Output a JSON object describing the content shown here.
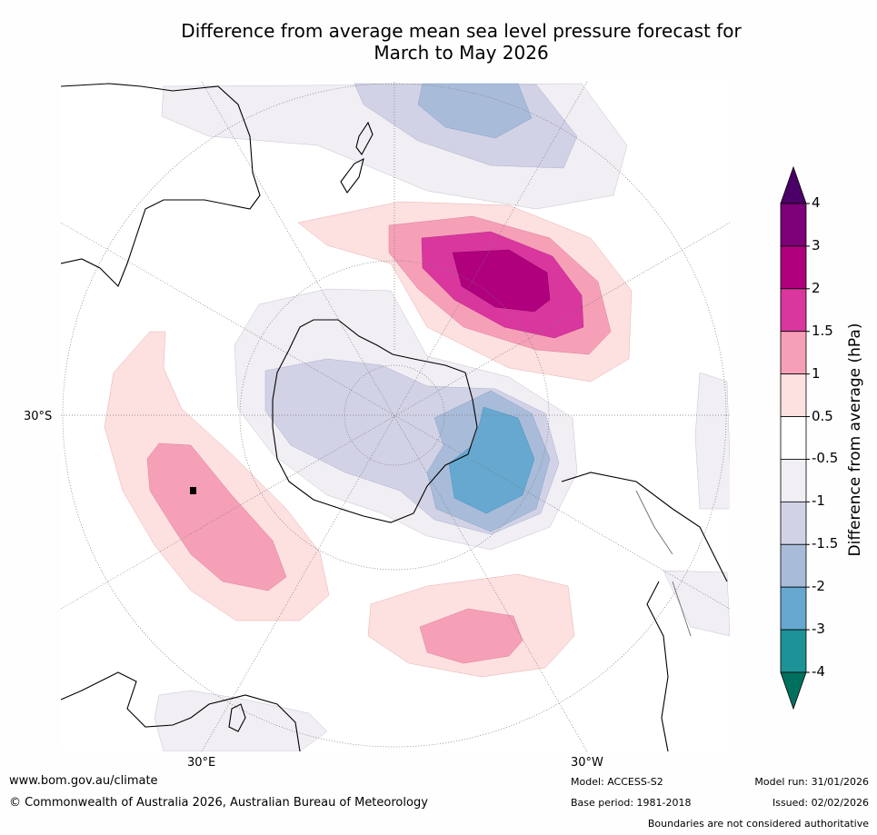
{
  "title": {
    "line1": "Difference from average mean sea level pressure forecast for",
    "line2": "March to May 2026"
  },
  "axis_labels": {
    "lat": "30°S",
    "lon_east": "30°E",
    "lon_west": "30°W"
  },
  "colorbar": {
    "label": "Difference from average (hPa)",
    "ticks": [
      "4",
      "3",
      "2",
      "1.5",
      "1",
      "0.5",
      "-0.5",
      "-1",
      "-1.5",
      "-2",
      "-3",
      "-4"
    ],
    "colors": [
      "#4b0068",
      "#7d0078",
      "#b0007e",
      "#d9379e",
      "#f6a0b8",
      "#fde0e0",
      "#ffffff",
      "#f1eef4",
      "#d2d2e6",
      "#a8bcd9",
      "#66a8d0",
      "#1d9297",
      "#00705e"
    ]
  },
  "footer": {
    "url": "www.bom.gov.au/climate",
    "copyright": "© Commonwealth of Australia 2026, Australian Bureau of Meteorology",
    "model": "Model: ACCESS-S2",
    "base_period": "Base period: 1981-2018",
    "model_run": "Model run: 31/01/2026",
    "issued": "Issued: 02/02/2026",
    "disclaimer": "Boundaries are not considered authoritative"
  }
}
